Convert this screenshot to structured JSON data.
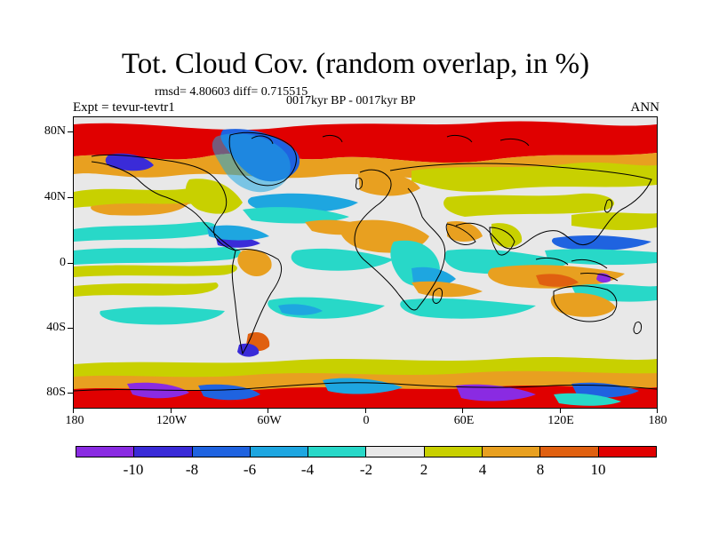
{
  "title": "Tot. Cloud Cov. (random overlap, in %)",
  "stats": "rmsd= 4.80603 diff= 0.715515",
  "experiment": "Expt = tevur-tevtr1",
  "period": "0017kyr BP - 0017kyr BP",
  "season": "ANN",
  "lat_labels": [
    "80N",
    "40N",
    "0",
    "40S",
    "80S"
  ],
  "lon_labels": [
    "180",
    "120W",
    "60W",
    "0",
    "60E",
    "120E",
    "180"
  ],
  "colorbar": {
    "labels": [
      "-10",
      "-8",
      "-6",
      "-4",
      "-2",
      "2",
      "4",
      "8",
      "10"
    ],
    "colors": [
      "#8a2be2",
      "#3a2bd8",
      "#1f63e0",
      "#1ea6e0",
      "#28d8c8",
      "#e8e8e8",
      "#c8d000",
      "#e8a020",
      "#e06010",
      "#e00000"
    ]
  },
  "map_colors": {
    "ocean_neutral": "#e8e8e8",
    "strong_positive": "#e00000",
    "positive": "#e06010",
    "moderate_positive": "#e8a020",
    "weak_positive": "#c8d000",
    "weak_negative": "#28d8c8",
    "negative": "#1ea6e0",
    "strong_negative": "#1f63e0",
    "very_negative": "#3a2bd8",
    "extreme_negative": "#8a2be2",
    "coast": "#000000"
  }
}
